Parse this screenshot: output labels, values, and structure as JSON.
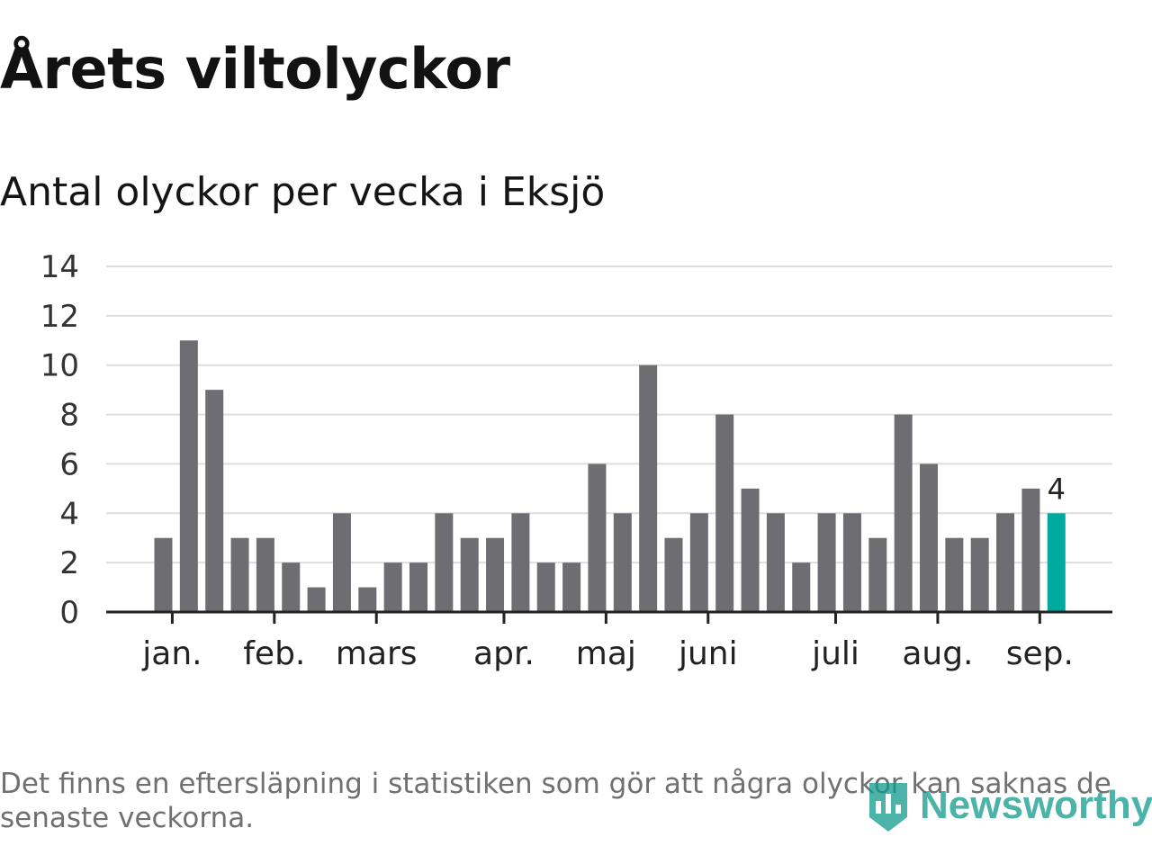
{
  "header": {
    "title": "Årets viltolyckor",
    "subtitle": "Antal olyckor per vecka i Eksjö"
  },
  "footnote": "Det finns en eftersläpning i statistiken som gör att några olyckor kan saknas de senaste veckorna.",
  "logo": {
    "text": "Newsworthy",
    "icon": "newsworthy-logo-icon"
  },
  "colors": {
    "bar": "#6e6d72",
    "highlight": "#00a99d",
    "grid": "#dddddd",
    "axis": "#222222",
    "brand": "#0f9a8c"
  },
  "chart_data": {
    "type": "bar",
    "title": "Antal olyckor per vecka i Eksjö",
    "xlabel": "",
    "ylabel": "",
    "ylim": [
      0,
      14
    ],
    "yticks": [
      0,
      2,
      4,
      6,
      8,
      10,
      12,
      14
    ],
    "grid": true,
    "values": [
      3,
      11,
      9,
      3,
      3,
      2,
      1,
      4,
      1,
      2,
      2,
      4,
      3,
      3,
      4,
      2,
      2,
      6,
      4,
      10,
      3,
      4,
      8,
      5,
      4,
      2,
      4,
      4,
      3,
      8,
      6,
      3,
      3,
      4,
      5,
      4
    ],
    "highlight_index": 35,
    "highlight_label": "4",
    "month_ticks": [
      {
        "label": "jan.",
        "week": 0.35
      },
      {
        "label": "feb.",
        "week": 4.35
      },
      {
        "label": "mars",
        "week": 8.35
      },
      {
        "label": "apr.",
        "week": 13.35
      },
      {
        "label": "maj",
        "week": 17.35
      },
      {
        "label": "juni",
        "week": 21.35
      },
      {
        "label": "juli",
        "week": 26.35
      },
      {
        "label": "aug.",
        "week": 30.35
      },
      {
        "label": "sep.",
        "week": 34.35
      }
    ]
  }
}
